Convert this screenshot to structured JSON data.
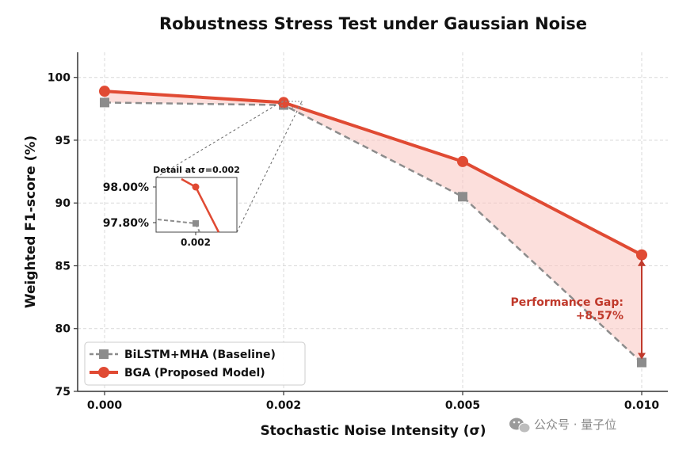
{
  "chart_data": {
    "type": "line",
    "title": "Robustness Stress Test under Gaussian Noise",
    "xlabel": "Stochastic Noise Intensity (σ)",
    "ylabel": "Weighted F1-score (%)",
    "x": [
      0.0,
      0.002,
      0.005,
      0.01
    ],
    "x_tick_labels": [
      "0.000",
      "0.002",
      "0.005",
      "0.010"
    ],
    "y_ticks": [
      75,
      80,
      85,
      90,
      95,
      100
    ],
    "ylim": [
      75,
      102
    ],
    "grid": true,
    "legend_position": "lower-left",
    "series": [
      {
        "name": "BiLSTM+MHA (Baseline)",
        "values": [
          98.0,
          97.8,
          90.5,
          77.3
        ],
        "color": "#8c8c8c",
        "style": "dashed",
        "marker": "square"
      },
      {
        "name": "BGA (Proposed Model)",
        "values": [
          98.9,
          98.0,
          93.3,
          85.87
        ],
        "color": "#e04a33",
        "style": "solid",
        "marker": "circle"
      }
    ],
    "annotation": {
      "line1": "Performance Gap:",
      "line2": "+8.57%",
      "at_x": 0.01,
      "from_value": 85.87,
      "to_value": 77.3,
      "color": "#c0392b"
    },
    "fill_between": {
      "color": "#f9c5c0"
    },
    "inset": {
      "title": "Detail at σ=0.002",
      "x_tick": "0.002",
      "y_labels": [
        "98.00%",
        "97.80%"
      ]
    }
  },
  "watermark": {
    "text": "公众号 · 量子位"
  }
}
